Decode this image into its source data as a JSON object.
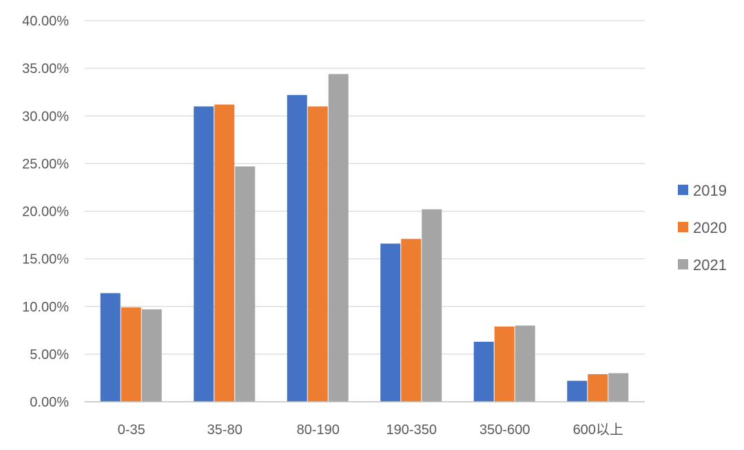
{
  "chart_data": {
    "type": "bar",
    "title": "",
    "xlabel": "",
    "ylabel": "",
    "categories": [
      "0-35",
      "35-80",
      "80-190",
      "190-350",
      "350-600",
      "600以上"
    ],
    "series": [
      {
        "name": "2019",
        "color": "#4472C4",
        "values": [
          11.4,
          31.0,
          32.2,
          16.6,
          6.3,
          2.2
        ]
      },
      {
        "name": "2020",
        "color": "#ED7D31",
        "values": [
          9.9,
          31.2,
          31.0,
          17.1,
          7.9,
          2.9
        ]
      },
      {
        "name": "2021",
        "color": "#A5A5A5",
        "values": [
          9.7,
          24.7,
          34.4,
          20.2,
          8.0,
          3.0
        ]
      }
    ],
    "ylim": [
      0,
      40
    ],
    "yticks": [
      "0.00%",
      "5.00%",
      "10.00%",
      "15.00%",
      "20.00%",
      "25.00%",
      "30.00%",
      "35.00%",
      "40.00%"
    ],
    "grid": true,
    "legend_position": "right"
  }
}
